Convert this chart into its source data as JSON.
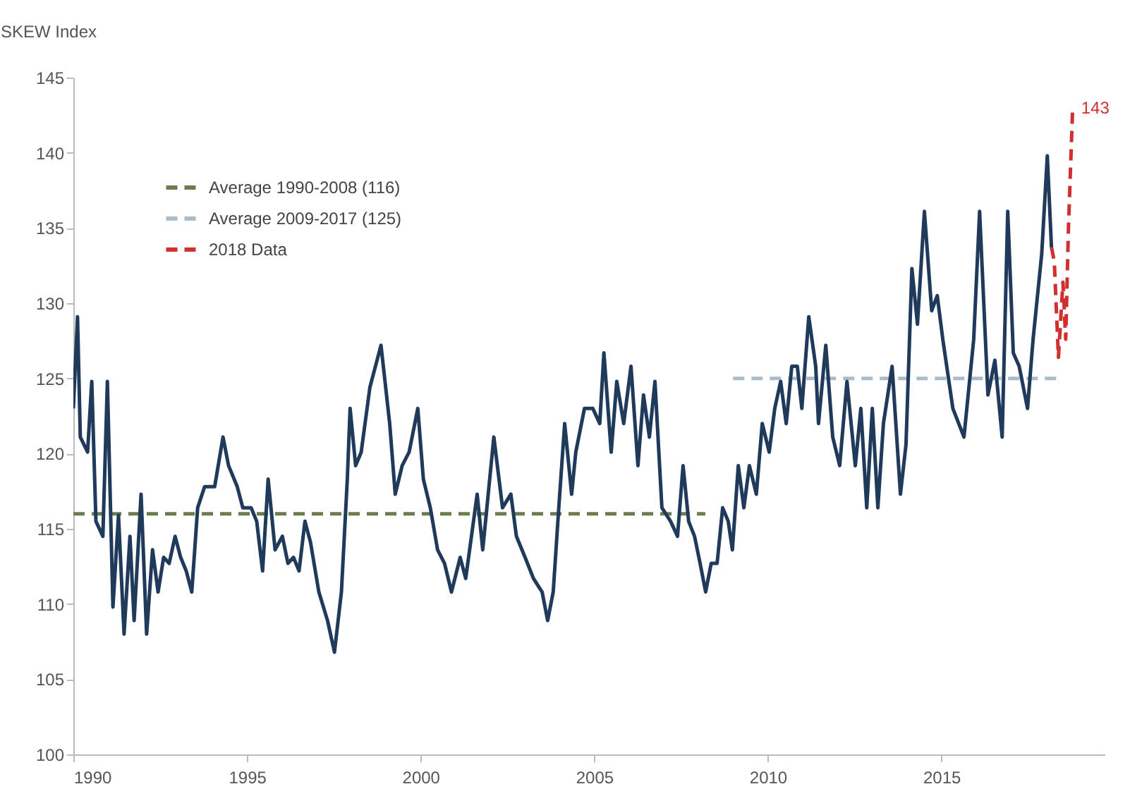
{
  "chart_data": {
    "type": "line",
    "ylabel": "SKEW Index",
    "xlim": [
      1990,
      2019.7
    ],
    "xticks": [
      1990,
      1995,
      2000,
      2005,
      2010,
      2015
    ],
    "ylim": [
      100,
      145
    ],
    "yticks": [
      100,
      105,
      110,
      115,
      120,
      125,
      130,
      135,
      140,
      145
    ],
    "grid": false,
    "legend": "top left",
    "marker": "none",
    "series": [
      {
        "name": "Average 1990-2008 (116)",
        "color": "#6b7d4f",
        "line_style": "dashed",
        "x": [
          1990,
          2008.2
        ],
        "values": [
          116,
          116
        ]
      },
      {
        "name": "Average 2009-2017 (125)",
        "color": "#a9bccc",
        "line_style": "dashed",
        "x": [
          2009,
          2018.4
        ],
        "values": [
          125,
          125
        ]
      },
      {
        "color": "#1f3a5a",
        "line_style": "solid",
        "x": [
          1990.0,
          1990.12,
          1990.2,
          1990.41,
          1990.53,
          1990.65,
          1990.85,
          1990.98,
          1991.14,
          1991.3,
          1991.46,
          1991.63,
          1991.75,
          1991.95,
          1992.11,
          1992.28,
          1992.44,
          1992.6,
          1992.76,
          1992.93,
          1993.09,
          1993.25,
          1993.41,
          1993.58,
          1993.78,
          1994.07,
          1994.31,
          1994.47,
          1994.72,
          1994.88,
          1995.12,
          1995.28,
          1995.45,
          1995.61,
          1995.81,
          1996.02,
          1996.18,
          1996.34,
          1996.5,
          1996.67,
          1996.83,
          1997.07,
          1997.32,
          1997.52,
          1997.72,
          1997.89,
          1997.97,
          1998.13,
          1998.29,
          1998.54,
          1998.86,
          1999.11,
          1999.27,
          1999.47,
          1999.67,
          1999.92,
          2000.08,
          2000.28,
          2000.49,
          2000.69,
          2000.89,
          2001.14,
          2001.3,
          2001.63,
          2001.79,
          2002.11,
          2002.36,
          2002.6,
          2002.76,
          2003.01,
          2003.25,
          2003.5,
          2003.66,
          2003.82,
          2003.98,
          2004.15,
          2004.35,
          2004.47,
          2004.72,
          2004.96,
          2005.16,
          2005.28,
          2005.49,
          2005.65,
          2005.85,
          2006.06,
          2006.26,
          2006.42,
          2006.59,
          2006.75,
          2006.95,
          2007.2,
          2007.4,
          2007.56,
          2007.72,
          2007.89,
          2008.05,
          2008.21,
          2008.37,
          2008.54,
          2008.7,
          2008.86,
          2008.98,
          2009.15,
          2009.31,
          2009.47,
          2009.67,
          2009.84,
          2010.04,
          2010.2,
          2010.37,
          2010.53,
          2010.69,
          2010.85,
          2010.98,
          2011.18,
          2011.38,
          2011.46,
          2011.67,
          2011.87,
          2012.07,
          2012.28,
          2012.52,
          2012.68,
          2012.85,
          2013.01,
          2013.17,
          2013.33,
          2013.58,
          2013.82,
          2013.98,
          2014.15,
          2014.31,
          2014.51,
          2014.72,
          2014.88,
          2015.04,
          2015.33,
          2015.65,
          2015.93,
          2016.1,
          2016.34,
          2016.54,
          2016.75,
          2016.91,
          2017.07,
          2017.24,
          2017.48,
          2017.64,
          2017.89,
          2018.05,
          2018.17
        ],
        "values": [
          123.0,
          129.1,
          121.1,
          120.1,
          124.8,
          115.5,
          114.5,
          124.8,
          109.8,
          115.9,
          108.0,
          114.5,
          108.9,
          117.3,
          108.0,
          113.6,
          110.8,
          113.1,
          112.7,
          114.5,
          113.1,
          112.2,
          110.8,
          116.4,
          117.8,
          117.8,
          121.1,
          119.2,
          117.8,
          116.4,
          116.4,
          115.5,
          112.2,
          118.3,
          113.6,
          114.5,
          112.7,
          113.1,
          112.2,
          115.5,
          114.1,
          110.8,
          108.9,
          106.8,
          110.8,
          118.3,
          123.0,
          119.2,
          120.1,
          124.4,
          127.2,
          122.0,
          117.3,
          119.2,
          120.1,
          123.0,
          118.3,
          116.4,
          113.6,
          112.7,
          110.8,
          113.1,
          111.7,
          117.3,
          113.6,
          121.1,
          116.4,
          117.3,
          114.5,
          113.1,
          111.7,
          110.8,
          108.9,
          110.8,
          116.4,
          122.0,
          117.3,
          120.1,
          123.0,
          123.0,
          122.0,
          126.7,
          120.1,
          124.8,
          122.0,
          125.8,
          119.2,
          123.9,
          121.1,
          124.8,
          116.4,
          115.5,
          114.5,
          119.2,
          115.5,
          114.5,
          112.7,
          110.8,
          112.7,
          112.7,
          116.4,
          115.5,
          113.6,
          119.2,
          116.4,
          119.2,
          117.3,
          122.0,
          120.1,
          123.0,
          124.8,
          122.0,
          125.8,
          125.8,
          123.0,
          129.1,
          125.8,
          122.0,
          127.2,
          121.1,
          119.2,
          124.8,
          119.2,
          123.0,
          116.4,
          123.0,
          116.4,
          122.0,
          125.8,
          117.3,
          120.6,
          132.3,
          128.6,
          136.1,
          129.5,
          130.5,
          127.6,
          123.0,
          121.1,
          127.6,
          136.1,
          123.9,
          126.2,
          121.1,
          136.1,
          126.7,
          125.8,
          123.0,
          127.6,
          133.3,
          139.8,
          133.7
        ]
      },
      {
        "name": "2018 Data",
        "color": "#d03030",
        "line_style": "dashed",
        "x": [
          2018.17,
          2018.25,
          2018.37,
          2018.5,
          2018.58,
          2018.66,
          2018.78
        ],
        "values": [
          133.7,
          132.8,
          126.4,
          131.4,
          127.6,
          135.1,
          143
        ]
      }
    ],
    "annotations": [
      {
        "text": "143",
        "x": 2018.78,
        "y": 143
      }
    ]
  }
}
